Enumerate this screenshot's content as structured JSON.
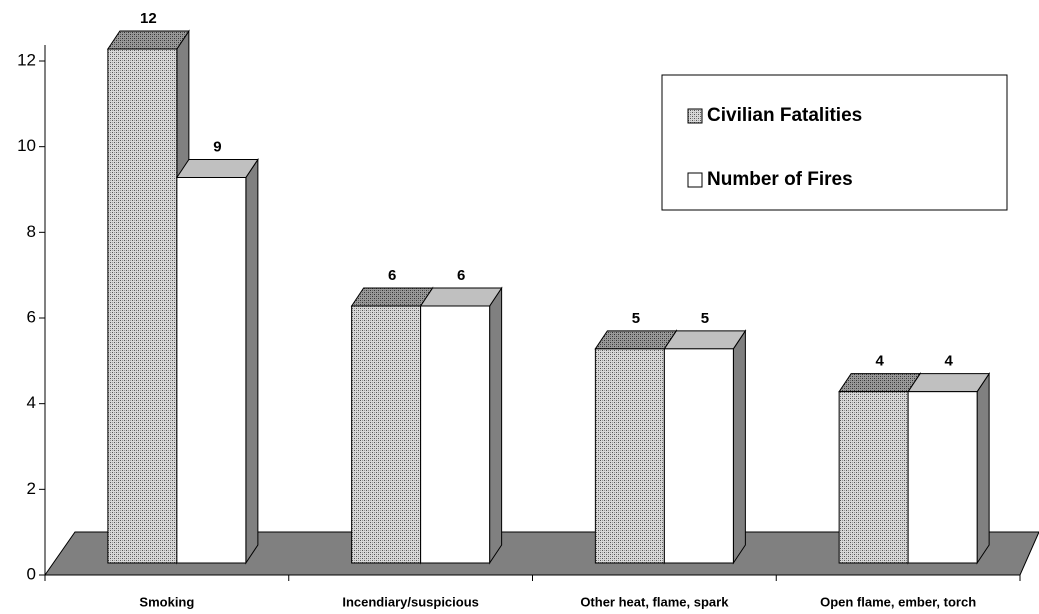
{
  "chart_data": {
    "type": "bar3d",
    "categories": [
      "Smoking",
      "Incendiary/suspicious",
      "Other heat, flame, spark",
      "Open flame, ember, torch"
    ],
    "series": [
      {
        "name": "Civilian Fatalities",
        "color": "#b8b8b8",
        "values": [
          12,
          6,
          5,
          4
        ]
      },
      {
        "name": "Number of Fires",
        "color": "#ffffff",
        "values": [
          9,
          6,
          5,
          4
        ]
      }
    ],
    "ylim": [
      0,
      12
    ],
    "yticks": [
      0,
      2,
      4,
      6,
      8,
      10,
      12
    ],
    "legend": "upper right"
  }
}
